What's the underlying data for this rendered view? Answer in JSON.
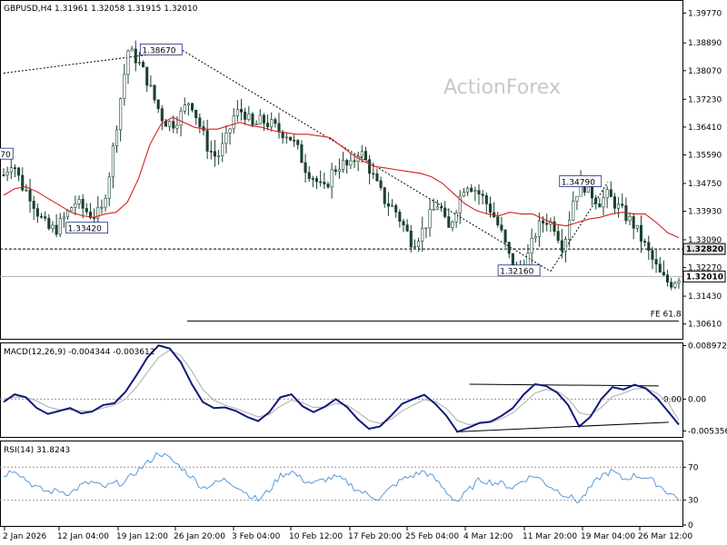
{
  "chart_data": [
    {
      "type": "candlestick",
      "header": "GBPUSD,H4  1.31961 1.32058 1.31915 1.32010",
      "watermark": "ActionForex",
      "ylim": [
        1.302,
        1.401
      ],
      "yticks": [
        "1.39770",
        "1.38890",
        "1.38070",
        "1.37230",
        "1.36410",
        "1.35590",
        "1.34750",
        "1.33930",
        "1.33090",
        "1.32270",
        "1.31430",
        "1.30610"
      ],
      "price_markers": [
        {
          "label": "1.32820",
          "value": 1.3282,
          "color": "#000000",
          "style": "dashed"
        },
        {
          "label": "1.32010",
          "value": 1.3201,
          "color": "#b0b0b0",
          "style": "solid"
        }
      ],
      "annotations": [
        {
          "label": "1.38670",
          "value": 1.3867
        },
        {
          "label": "1.33420",
          "value": 1.3342
        },
        {
          "label": "1.32160",
          "value": 1.3216
        },
        {
          "label": "1.34790",
          "value": 1.3479
        },
        {
          "label": "70",
          "value": 1.356
        },
        {
          "label": "FE 61.8",
          "value": 1.307
        }
      ],
      "close_path": [
        1.35,
        1.3545,
        1.347,
        1.344,
        1.338,
        1.334,
        1.3342,
        1.338,
        1.342,
        1.34,
        1.338,
        1.339,
        1.352,
        1.37,
        1.3867,
        1.384,
        1.379,
        1.372,
        1.366,
        1.365,
        1.368,
        1.3725,
        1.365,
        1.358,
        1.355,
        1.36,
        1.368,
        1.369,
        1.364,
        1.366,
        1.365,
        1.363,
        1.362,
        1.358,
        1.352,
        1.349,
        1.345,
        1.351,
        1.3535,
        1.352,
        1.3575,
        1.353,
        1.347,
        1.342,
        1.34,
        1.335,
        1.33,
        1.333,
        1.338,
        1.342,
        1.333,
        1.341,
        1.348,
        1.346,
        1.343,
        1.339,
        1.333,
        1.325,
        1.3216,
        1.326,
        1.334,
        1.337,
        1.335,
        1.3285,
        1.342,
        1.3479,
        1.345,
        1.342,
        1.344,
        1.341,
        1.338,
        1.335,
        1.33,
        1.325,
        1.32,
        1.318,
        1.3201
      ],
      "moving_average": [
        1.344,
        1.346,
        1.3465,
        1.345,
        1.343,
        1.341,
        1.339,
        1.338,
        1.3375,
        1.3385,
        1.339,
        1.342,
        1.349,
        1.359,
        1.365,
        1.367,
        1.3655,
        1.364,
        1.3635,
        1.3635,
        1.3645,
        1.3655,
        1.3645,
        1.364,
        1.363,
        1.3625,
        1.362,
        1.362,
        1.3615,
        1.361,
        1.3585,
        1.356,
        1.354,
        1.3525,
        1.352,
        1.3515,
        1.351,
        1.3505,
        1.3495,
        1.3475,
        1.3445,
        1.3415,
        1.3395,
        1.3385,
        1.338,
        1.339,
        1.3385,
        1.3385,
        1.337,
        1.3355,
        1.335,
        1.336,
        1.337,
        1.3375,
        1.3385,
        1.339,
        1.3385,
        1.3385,
        1.336,
        1.333,
        1.3315
      ],
      "fe_level": 1.307,
      "trendlines": [
        {
          "from": [
            0.0,
            1.38
          ],
          "to": [
            0.265,
            1.3867
          ],
          "style": "dotted"
        },
        {
          "from": [
            0.265,
            1.3867
          ],
          "to": [
            0.81,
            1.3216
          ],
          "style": "dotted"
        },
        {
          "from": [
            0.81,
            1.3216
          ],
          "to": [
            0.895,
            1.3479
          ],
          "style": "dotted"
        }
      ]
    },
    {
      "type": "line",
      "header": "MACD(12,26,9) -0.004344 -0.003612",
      "ylim": [
        -0.0062,
        0.0092
      ],
      "yticks": [
        "0.008972",
        "0.00",
        "-0.005356"
      ],
      "value_labels": [
        "0.00"
      ],
      "series": [
        {
          "name": "MACD",
          "color": "#0d1a7a",
          "values": [
            -0.0005,
            0.0008,
            0.0003,
            -0.0015,
            -0.0025,
            -0.002,
            -0.0015,
            -0.0024,
            -0.0021,
            -0.001,
            -0.0007,
            0.0012,
            0.004,
            0.007,
            0.009,
            0.0085,
            0.0062,
            0.0025,
            -0.0005,
            -0.0015,
            -0.0014,
            -0.002,
            -0.003,
            -0.0037,
            -0.0022,
            0.0003,
            0.0008,
            -0.0012,
            -0.0022,
            -0.0013,
            0.0,
            -0.0013,
            -0.0034,
            -0.005,
            -0.0046,
            -0.0028,
            -0.0008,
            0.0,
            0.0007,
            -0.0008,
            -0.0028,
            -0.0055,
            -0.0048,
            -0.004,
            -0.0038,
            -0.0028,
            -0.0015,
            0.0008,
            0.0025,
            0.0022,
            0.0011,
            -0.001,
            -0.0046,
            -0.003,
            0.0,
            0.002,
            0.0016,
            0.0024,
            0.0018,
            0.0002,
            -0.002,
            -0.0043
          ]
        },
        {
          "name": "Signal",
          "color": "#b8b8b8",
          "values": [
            0.0,
            0.0003,
            0.0003,
            -0.0003,
            -0.0013,
            -0.0018,
            -0.0018,
            -0.002,
            -0.002,
            -0.0015,
            -0.001,
            0.0,
            0.002,
            0.0045,
            0.007,
            0.0082,
            0.0073,
            0.0047,
            0.0016,
            -0.0002,
            -0.001,
            -0.0016,
            -0.0023,
            -0.003,
            -0.0026,
            -0.0012,
            -0.0002,
            -0.0006,
            -0.0014,
            -0.0014,
            -0.0007,
            -0.001,
            -0.0022,
            -0.0036,
            -0.0041,
            -0.0034,
            -0.002,
            -0.001,
            -0.0001,
            -0.0004,
            -0.0016,
            -0.0036,
            -0.0043,
            -0.0041,
            -0.0039,
            -0.0033,
            -0.0023,
            -0.0007,
            0.001,
            0.0016,
            0.0013,
            0.0001,
            -0.0023,
            -0.0027,
            -0.0014,
            0.0004,
            0.001,
            0.0017,
            0.0018,
            0.001,
            -0.0005,
            -0.0036
          ]
        }
      ]
    },
    {
      "type": "line",
      "header": "RSI(14) 31.8243",
      "ylim": [
        0,
        100
      ],
      "yticks": [
        "70",
        "30",
        "0"
      ],
      "levels": [
        70,
        30
      ],
      "series": [
        {
          "name": "RSI",
          "color": "#4a8fd8",
          "values": [
            60,
            68,
            55,
            45,
            40,
            42,
            38,
            48,
            52,
            45,
            50,
            52,
            65,
            75,
            88,
            80,
            70,
            58,
            45,
            50,
            55,
            48,
            38,
            30,
            42,
            60,
            65,
            55,
            50,
            55,
            58,
            52,
            42,
            36,
            32,
            45,
            55,
            60,
            65,
            55,
            40,
            28,
            42,
            55,
            52,
            50,
            45,
            55,
            60,
            50,
            42,
            35,
            28,
            45,
            60,
            65,
            55,
            60,
            58,
            50,
            40,
            31.8
          ]
        }
      ],
      "x_ticks": [
        "2 Jan 2026",
        "12 Jan 04:00",
        "19 Jan 12:00",
        "26 Jan 20:00",
        "3 Feb 04:00",
        "10 Feb 12:00",
        "17 Feb 20:00",
        "25 Feb 04:00",
        "4 Mar 12:00",
        "11 Mar 20:00",
        "19 Mar 04:00",
        "26 Mar 12:00"
      ]
    }
  ]
}
